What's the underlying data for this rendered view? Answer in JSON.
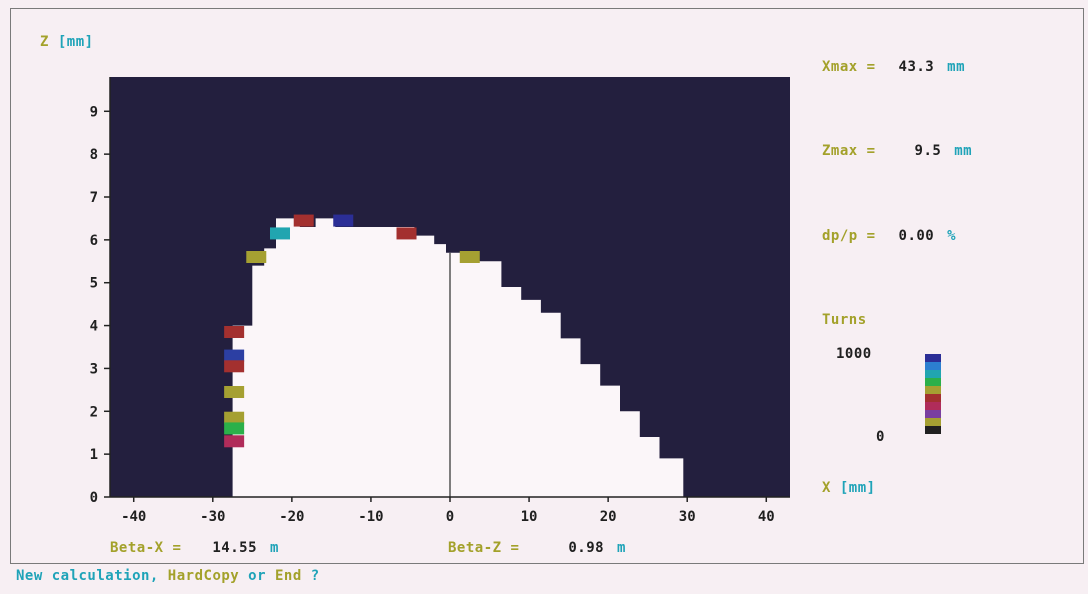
{
  "colors": {
    "background": "#f7eff3",
    "lost_region": "#231f3e",
    "stable_region": "#fbf6f9",
    "label_olive": "#a3a12a",
    "label_cyan": "#1fa3b8",
    "label_black": "#202020"
  },
  "chart_data": {
    "type": "area",
    "title": "",
    "xlabel": "X [mm]",
    "ylabel": "Z [mm]",
    "xlim": [
      -43,
      43
    ],
    "ylim": [
      0,
      9.8
    ],
    "xticks": [
      -40,
      -30,
      -20,
      -10,
      0,
      10,
      20,
      30,
      40
    ],
    "yticks": [
      0,
      1,
      2,
      3,
      4,
      5,
      6,
      7,
      8,
      9
    ],
    "grid": false,
    "aperture_boundary": [
      [
        -27.5,
        0
      ],
      [
        -27.5,
        4.0
      ],
      [
        -25,
        4.0
      ],
      [
        -25,
        5.4
      ],
      [
        -23.5,
        5.4
      ],
      [
        -23.5,
        5.8
      ],
      [
        -22,
        5.8
      ],
      [
        -22,
        6.5
      ],
      [
        -19,
        6.5
      ],
      [
        -19,
        6.3
      ],
      [
        -17,
        6.3
      ],
      [
        -17,
        6.5
      ],
      [
        -14.5,
        6.5
      ],
      [
        -14.5,
        6.3
      ],
      [
        -4.5,
        6.3
      ],
      [
        -4.5,
        6.1
      ],
      [
        -2,
        6.1
      ],
      [
        -2,
        5.9
      ],
      [
        -0.5,
        5.9
      ],
      [
        -0.5,
        5.7
      ],
      [
        3.5,
        5.7
      ],
      [
        3.5,
        5.5
      ],
      [
        6.5,
        5.5
      ],
      [
        6.5,
        4.9
      ],
      [
        9,
        4.9
      ],
      [
        9,
        4.6
      ],
      [
        11.5,
        4.6
      ],
      [
        11.5,
        4.3
      ],
      [
        14,
        4.3
      ],
      [
        14,
        3.7
      ],
      [
        16.5,
        3.7
      ],
      [
        16.5,
        3.1
      ],
      [
        19,
        3.1
      ],
      [
        19,
        2.6
      ],
      [
        21.5,
        2.6
      ],
      [
        21.5,
        2.0
      ],
      [
        24,
        2.0
      ],
      [
        24,
        1.4
      ],
      [
        26.5,
        1.4
      ],
      [
        26.5,
        0.9
      ],
      [
        29.5,
        0.9
      ],
      [
        29.5,
        0
      ]
    ],
    "divider_x": 0,
    "particle_markers": [
      {
        "x": -18.5,
        "z": 6.45,
        "color": "#a3302f"
      },
      {
        "x": -13.5,
        "z": 6.45,
        "color": "#2b2e96"
      },
      {
        "x": -21.5,
        "z": 6.15,
        "color": "#21a5b0"
      },
      {
        "x": -5.5,
        "z": 6.15,
        "color": "#a3302f"
      },
      {
        "x": -24.5,
        "z": 5.6,
        "color": "#a5a032"
      },
      {
        "x": 2.5,
        "z": 5.6,
        "color": "#a5a032"
      },
      {
        "x": -27.3,
        "z": 3.85,
        "color": "#a3302f"
      },
      {
        "x": -27.3,
        "z": 3.3,
        "color": "#2c3fa3"
      },
      {
        "x": -27.3,
        "z": 3.05,
        "color": "#a3302f"
      },
      {
        "x": -27.3,
        "z": 2.45,
        "color": "#a5a032"
      },
      {
        "x": -27.3,
        "z": 1.85,
        "color": "#a5a032"
      },
      {
        "x": -27.3,
        "z": 1.6,
        "color": "#2bb04a"
      },
      {
        "x": -27.3,
        "z": 1.3,
        "color": "#b02c5a"
      }
    ],
    "legend": {
      "title": "Turns",
      "max_label": "1000",
      "min_label": "0",
      "colors": [
        "#2b2e96",
        "#2c7fd0",
        "#21a5b0",
        "#2bb04a",
        "#a5a032",
        "#a3302f",
        "#b02c5a",
        "#7a3fa0",
        "#a5a032",
        "#202020"
      ]
    }
  },
  "readouts": {
    "xmax_label": "Xmax =",
    "xmax_value": "43.3",
    "xmax_unit": "mm",
    "zmax_label": "Zmax =",
    "zmax_value": "9.5",
    "zmax_unit": "mm",
    "dpp_label": "dp/p =",
    "dpp_value": "0.00",
    "dpp_unit": "%",
    "betax_label": "Beta-X =",
    "betax_value": "14.55",
    "betax_unit": "m",
    "betaz_label": "Beta-Z =",
    "betaz_value": "0.98",
    "betaz_unit": "m"
  },
  "prompt": {
    "part1": "New calculation,",
    "part2": "HardCopy",
    "part3": "or",
    "part4": "End",
    "part5": "?"
  }
}
